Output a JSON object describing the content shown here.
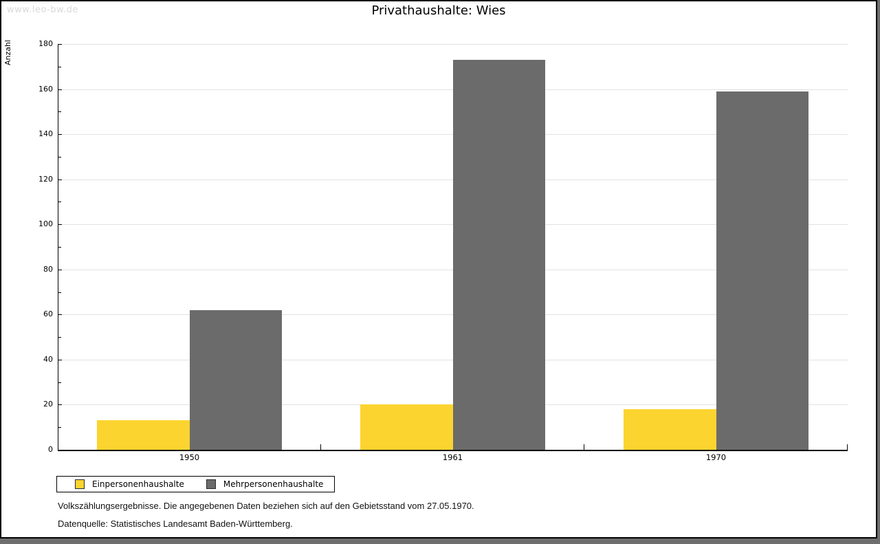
{
  "watermark": "www.leo-bw.de",
  "title": "Privathaushalte: Wies",
  "chart_data": {
    "type": "bar",
    "title": "Privathaushalte: Wies",
    "categories": [
      "1950",
      "1961",
      "1970"
    ],
    "series": [
      {
        "name": "Einpersonenhaushalte",
        "color": "#FCD430",
        "values": [
          13,
          20,
          18
        ]
      },
      {
        "name": "Mehrpersonenhaushalte",
        "color": "#6B6B6B",
        "values": [
          62,
          173,
          159
        ]
      }
    ],
    "xlabel": "",
    "ylabel": "Anzahl",
    "ylim": [
      0,
      180
    ],
    "ytick_step": 20,
    "yminor_step": 10,
    "grid": true,
    "legend_position": "bottom-left"
  },
  "footer": {
    "line1": "Volkszählungsergebnisse. Die angegebenen Daten beziehen sich auf den Gebietsstand vom 27.05.1970.",
    "line2": "Datenquelle: Statistisches Landesamt Baden-Württemberg."
  },
  "colors": {
    "bar_yellow": "#FCD430",
    "bar_gray": "#6B6B6B",
    "gridline": "#E2E2E2",
    "watermark": "#D9D9D9",
    "page_edge": "#6E6E6E"
  }
}
